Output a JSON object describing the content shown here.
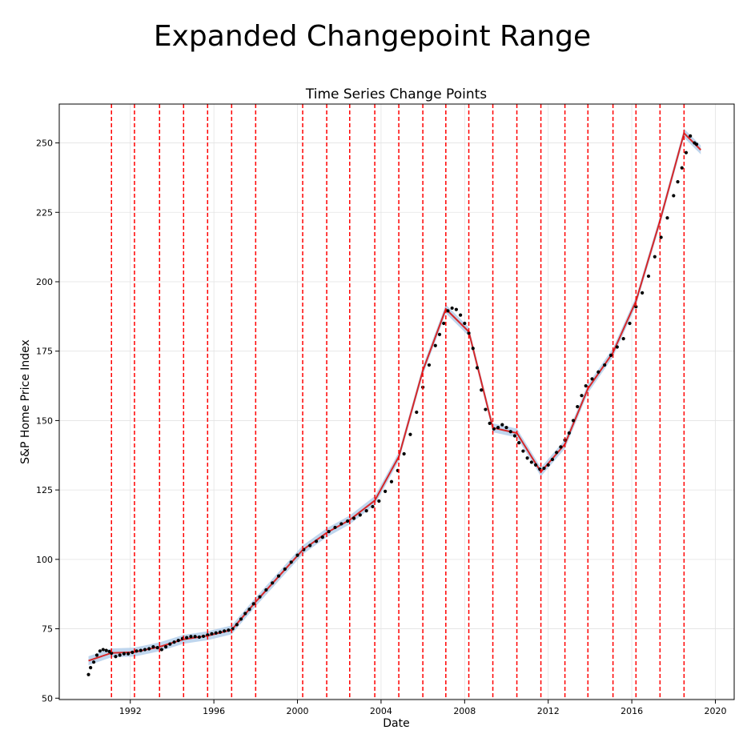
{
  "chart_data": {
    "type": "line",
    "suptitle": "Expanded Changepoint Range",
    "title": "Time Series Change Points",
    "xlabel": "Date",
    "ylabel": "S&P Home Price Index",
    "xlim": [
      1988.6,
      2020.9
    ],
    "ylim": [
      49.5,
      264
    ],
    "x_ticks": [
      1992,
      1996,
      2000,
      2004,
      2008,
      2012,
      2016,
      2020
    ],
    "y_ticks": [
      50,
      75,
      100,
      125,
      150,
      175,
      200,
      225,
      250
    ],
    "grid": true,
    "colors": {
      "observed": "#000000",
      "trend": "#d62728",
      "uncertainty": "#a9c8e8",
      "changepoint": "#ff0000"
    },
    "changepoints": [
      1991.1,
      1992.2,
      1993.4,
      1994.55,
      1995.7,
      1996.85,
      1998.0,
      2000.25,
      2001.4,
      2002.5,
      2003.7,
      2004.85,
      2006.0,
      2007.1,
      2008.2,
      2009.35,
      2010.5,
      2011.65,
      2012.8,
      2013.9,
      2015.1,
      2016.2,
      2017.35,
      2018.5
    ],
    "trend": {
      "x": [
        1990.0,
        1991.1,
        1992.2,
        1993.4,
        1994.55,
        1995.7,
        1996.85,
        1998.0,
        2000.25,
        2001.4,
        2002.5,
        2003.7,
        2004.85,
        2006.0,
        2007.1,
        2008.2,
        2009.35,
        2010.5,
        2011.65,
        2012.8,
        2013.9,
        2015.1,
        2016.2,
        2017.35,
        2018.5,
        2019.3
      ],
      "y": [
        63.5,
        66.3,
        66.6,
        68.5,
        71.2,
        72.5,
        74.6,
        84.7,
        103.4,
        109.6,
        114.2,
        121.2,
        137.0,
        168.0,
        190.2,
        182.0,
        147.4,
        145.5,
        131.5,
        141.5,
        161.5,
        174.5,
        193.0,
        222.0,
        253.5,
        247.5
      ]
    },
    "observed": {
      "x": [
        1990.0,
        1990.1,
        1990.25,
        1990.4,
        1990.55,
        1990.7,
        1990.85,
        1991.0,
        1991.1,
        1991.3,
        1991.5,
        1991.7,
        1991.9,
        1992.1,
        1992.3,
        1992.5,
        1992.7,
        1992.9,
        1993.1,
        1993.3,
        1993.5,
        1993.7,
        1993.9,
        1994.1,
        1994.3,
        1994.5,
        1994.7,
        1994.9,
        1995.1,
        1995.3,
        1995.5,
        1995.7,
        1995.9,
        1996.1,
        1996.3,
        1996.5,
        1996.7,
        1996.9,
        1997.1,
        1997.3,
        1997.5,
        1997.7,
        1997.9,
        1998.2,
        1998.5,
        1998.8,
        1999.1,
        1999.4,
        1999.7,
        2000.0,
        2000.3,
        2000.6,
        2000.9,
        2001.2,
        2001.5,
        2001.8,
        2002.1,
        2002.4,
        2002.7,
        2003.0,
        2003.3,
        2003.6,
        2003.9,
        2004.2,
        2004.5,
        2004.8,
        2005.1,
        2005.4,
        2005.7,
        2006.0,
        2006.3,
        2006.6,
        2006.8,
        2007.0,
        2007.2,
        2007.4,
        2007.6,
        2007.8,
        2008.0,
        2008.2,
        2008.4,
        2008.6,
        2008.8,
        2009.0,
        2009.2,
        2009.4,
        2009.6,
        2009.8,
        2010.0,
        2010.2,
        2010.4,
        2010.6,
        2010.8,
        2011.0,
        2011.2,
        2011.4,
        2011.6,
        2011.8,
        2012.0,
        2012.2,
        2012.4,
        2012.6,
        2012.8,
        2013.0,
        2013.2,
        2013.4,
        2013.6,
        2013.8,
        2014.1,
        2014.4,
        2014.7,
        2015.0,
        2015.3,
        2015.6,
        2015.9,
        2016.2,
        2016.5,
        2016.8,
        2017.1,
        2017.4,
        2017.7,
        2018.0,
        2018.2,
        2018.4,
        2018.6,
        2018.8,
        2019.0,
        2019.1
      ],
      "y": [
        58.5,
        61.0,
        63.0,
        65.5,
        67.0,
        67.5,
        67.2,
        66.8,
        66.2,
        65.0,
        65.5,
        66.0,
        66.0,
        66.5,
        67.0,
        67.2,
        67.5,
        67.8,
        68.5,
        68.2,
        67.5,
        68.5,
        69.5,
        70.2,
        70.8,
        71.5,
        71.8,
        72.2,
        72.2,
        72.0,
        72.3,
        72.8,
        73.2,
        73.5,
        73.8,
        74.2,
        74.5,
        75.0,
        76.5,
        78.5,
        80.5,
        82.0,
        84.0,
        86.5,
        89.0,
        91.5,
        94.0,
        96.5,
        99.0,
        101.5,
        103.5,
        105.0,
        106.5,
        108.0,
        110.0,
        111.5,
        112.8,
        113.8,
        114.8,
        116.0,
        117.5,
        119.0,
        121.0,
        124.5,
        128.0,
        132.0,
        138.0,
        145.0,
        153.0,
        162.0,
        170.0,
        177.0,
        181.0,
        185.0,
        189.5,
        190.5,
        190.0,
        188.0,
        185.0,
        181.5,
        176.0,
        169.0,
        161.0,
        154.0,
        149.0,
        147.0,
        147.5,
        148.5,
        147.5,
        146.0,
        144.5,
        142.0,
        139.0,
        136.5,
        135.0,
        134.0,
        132.5,
        132.8,
        134.0,
        136.0,
        138.5,
        140.5,
        143.0,
        145.5,
        150.0,
        155.0,
        159.0,
        162.5,
        165.0,
        167.5,
        170.0,
        173.5,
        176.5,
        179.5,
        185.0,
        191.0,
        196.0,
        202.0,
        209.0,
        216.0,
        223.0,
        231.0,
        236.0,
        241.0,
        246.5,
        252.5,
        250.0,
        249.5
      ]
    }
  }
}
